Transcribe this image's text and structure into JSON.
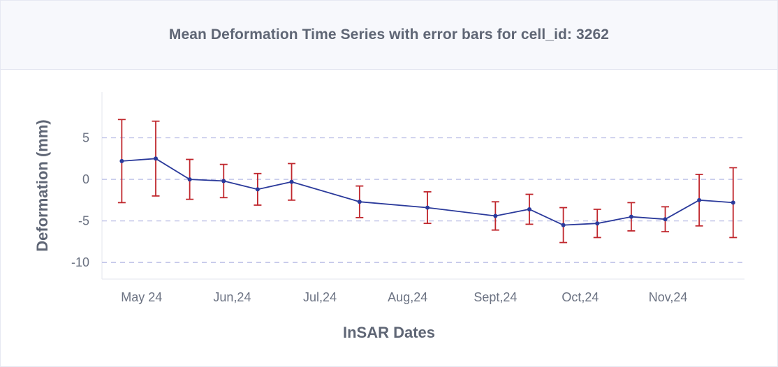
{
  "chart_data": {
    "type": "line",
    "title": "Mean Deformation Time Series with error bars for cell_id: 3262",
    "xlabel": "InSAR Dates",
    "ylabel": "Deformation (mm)",
    "ylim": [
      -12,
      10.5
    ],
    "xlim": [
      "2024-04-29",
      "2024-12-12"
    ],
    "y_ticks": [
      5,
      0,
      -5,
      -10
    ],
    "y_tick_labels": [
      "5",
      "0",
      "-5",
      "-10"
    ],
    "x_ticks": [
      {
        "date": "2024-05-13",
        "label": "May 24"
      },
      {
        "date": "2024-06-14",
        "label": "Jun,24"
      },
      {
        "date": "2024-07-15",
        "label": "Jul,24"
      },
      {
        "date": "2024-08-15",
        "label": "Aug,24"
      },
      {
        "date": "2024-09-15",
        "label": "Sept,24"
      },
      {
        "date": "2024-10-15",
        "label": "Oct,24"
      },
      {
        "date": "2024-11-15",
        "label": "Nov,24"
      }
    ],
    "grid": {
      "y": true,
      "x": false,
      "style": "dashed"
    },
    "series": [
      {
        "color": "#2b3a9b",
        "error_color": "#c0272d",
        "points": [
          {
            "x": "2024-05-06",
            "y": 2.2,
            "err": 5.0
          },
          {
            "x": "2024-05-18",
            "y": 2.5,
            "err": 4.5
          },
          {
            "x": "2024-05-30",
            "y": 0.0,
            "err": 2.4
          },
          {
            "x": "2024-06-11",
            "y": -0.2,
            "err": 2.0
          },
          {
            "x": "2024-06-23",
            "y": -1.2,
            "err": 1.9
          },
          {
            "x": "2024-07-05",
            "y": -0.3,
            "err": 2.2
          },
          {
            "x": "2024-07-29",
            "y": -2.7,
            "err": 1.9
          },
          {
            "x": "2024-08-22",
            "y": -3.4,
            "err": 1.9
          },
          {
            "x": "2024-09-15",
            "y": -4.4,
            "err": 1.7
          },
          {
            "x": "2024-09-27",
            "y": -3.6,
            "err": 1.8
          },
          {
            "x": "2024-10-09",
            "y": -5.5,
            "err": 2.1
          },
          {
            "x": "2024-10-21",
            "y": -5.3,
            "err": 1.7
          },
          {
            "x": "2024-11-02",
            "y": -4.5,
            "err": 1.7
          },
          {
            "x": "2024-11-14",
            "y": -4.8,
            "err": 1.5
          },
          {
            "x": "2024-11-26",
            "y": -2.5,
            "err": 3.1
          },
          {
            "x": "2024-12-08",
            "y": -2.8,
            "err": 4.2
          }
        ]
      }
    ]
  }
}
